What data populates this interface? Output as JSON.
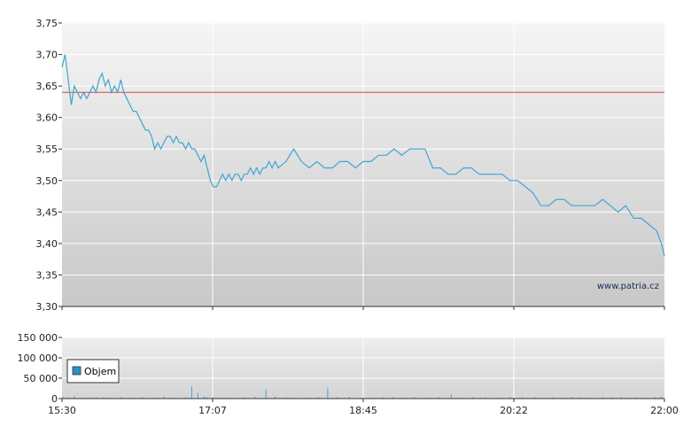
{
  "watermark": "www.patria.cz",
  "colors": {
    "price_line": "#3ea6d2",
    "reference_line": "#e0403a",
    "volume_bar": "#3ea6d2",
    "legend_swatch": "#2e8fc4"
  },
  "chart_data": [
    {
      "type": "line",
      "x_tick_labels": [
        "15:30",
        "17:07",
        "18:45",
        "20:22",
        "22:00"
      ],
      "xlim": [
        0,
        390
      ],
      "ylim": [
        3.3,
        3.75
      ],
      "y_tick_labels": [
        "3,30",
        "3,35",
        "3,40",
        "3,45",
        "3,50",
        "3,55",
        "3,60",
        "3,65",
        "3,70",
        "3,75"
      ],
      "y_ticks": [
        3.3,
        3.35,
        3.4,
        3.45,
        3.5,
        3.55,
        3.6,
        3.65,
        3.7,
        3.75
      ],
      "grid": true,
      "reference_line": 3.64,
      "series": [
        {
          "x": [
            0,
            2,
            4,
            6,
            8,
            10,
            12,
            14,
            16,
            18,
            20,
            22,
            24,
            26,
            28,
            30,
            32,
            34,
            36,
            38,
            40,
            42,
            44,
            46,
            48,
            50,
            52,
            54,
            56,
            58,
            60,
            62,
            64,
            66,
            68,
            70,
            72,
            74,
            76,
            78,
            80,
            82,
            84,
            86,
            88,
            90,
            92,
            94,
            96,
            98,
            100,
            102,
            104,
            106,
            108,
            110,
            112,
            114,
            116,
            118,
            120,
            122,
            124,
            126,
            128,
            130,
            132,
            134,
            136,
            138,
            140,
            145,
            150,
            155,
            160,
            165,
            170,
            175,
            180,
            185,
            190,
            195,
            200,
            205,
            210,
            215,
            220,
            225,
            230,
            235,
            240,
            245,
            250,
            255,
            260,
            265,
            270,
            275,
            280,
            285,
            290,
            295,
            300,
            305,
            310,
            315,
            320,
            325,
            330,
            335,
            340,
            345,
            350,
            355,
            360,
            365,
            370,
            375,
            380,
            385,
            388,
            390
          ],
          "y": [
            3.68,
            3.7,
            3.66,
            3.62,
            3.65,
            3.64,
            3.63,
            3.64,
            3.63,
            3.64,
            3.65,
            3.64,
            3.66,
            3.67,
            3.65,
            3.66,
            3.64,
            3.65,
            3.64,
            3.66,
            3.64,
            3.63,
            3.62,
            3.61,
            3.61,
            3.6,
            3.59,
            3.58,
            3.58,
            3.57,
            3.55,
            3.56,
            3.55,
            3.56,
            3.57,
            3.57,
            3.56,
            3.57,
            3.56,
            3.56,
            3.55,
            3.56,
            3.55,
            3.55,
            3.54,
            3.53,
            3.54,
            3.52,
            3.5,
            3.49,
            3.49,
            3.5,
            3.51,
            3.5,
            3.51,
            3.5,
            3.51,
            3.51,
            3.5,
            3.51,
            3.51,
            3.52,
            3.51,
            3.52,
            3.51,
            3.52,
            3.52,
            3.53,
            3.52,
            3.53,
            3.52,
            3.53,
            3.55,
            3.53,
            3.52,
            3.53,
            3.52,
            3.52,
            3.53,
            3.53,
            3.52,
            3.53,
            3.53,
            3.54,
            3.54,
            3.55,
            3.54,
            3.55,
            3.55,
            3.55,
            3.52,
            3.52,
            3.51,
            3.51,
            3.52,
            3.52,
            3.51,
            3.51,
            3.51,
            3.51,
            3.5,
            3.5,
            3.49,
            3.48,
            3.46,
            3.46,
            3.47,
            3.47,
            3.46,
            3.46,
            3.46,
            3.46,
            3.47,
            3.46,
            3.45,
            3.46,
            3.44,
            3.44,
            3.43,
            3.42,
            3.4,
            3.38
          ]
        }
      ]
    },
    {
      "type": "bar",
      "title": "",
      "xlim": [
        0,
        390
      ],
      "ylim": [
        0,
        150000
      ],
      "y_ticks": [
        0,
        50000,
        100000,
        150000
      ],
      "y_tick_labels": [
        "0",
        "50 000",
        "100 000",
        "150 000"
      ],
      "x_tick_labels": [
        "15:30",
        "17:07",
        "18:45",
        "20:22",
        "22:00"
      ],
      "grid": true,
      "legend": {
        "label": "Objem",
        "position": "bottom-left"
      },
      "series": [
        {
          "name": "Objem",
          "x": [
            1,
            4,
            8,
            13,
            18,
            22,
            27,
            38,
            45,
            52,
            60,
            66,
            72,
            80,
            84,
            88,
            92,
            94,
            98,
            102,
            110,
            118,
            125,
            132,
            138,
            145,
            150,
            158,
            166,
            172,
            178,
            186,
            194,
            202,
            208,
            214,
            220,
            228,
            236,
            244,
            252,
            258,
            266,
            274,
            282,
            290,
            298,
            306,
            312,
            318,
            324,
            330,
            336,
            342,
            350,
            356,
            362,
            368,
            372,
            378,
            384,
            388
          ],
          "values": [
            4000,
            3000,
            6000,
            2000,
            3000,
            2500,
            4000,
            3000,
            2000,
            3500,
            2500,
            4500,
            2000,
            3000,
            30000,
            14000,
            5000,
            3000,
            4000,
            2000,
            2500,
            3000,
            4500,
            22000,
            5000,
            3000,
            2000,
            2500,
            3500,
            27000,
            3000,
            4000,
            2000,
            2500,
            3000,
            3500,
            2000,
            4000,
            2500,
            3000,
            10000,
            2000,
            3500,
            3000,
            2500,
            4000,
            3000,
            3500,
            2500,
            3000,
            2000,
            4000,
            3000,
            2500,
            3500,
            3000,
            4000,
            2500,
            3000,
            2000,
            3500,
            4000
          ]
        }
      ]
    }
  ]
}
